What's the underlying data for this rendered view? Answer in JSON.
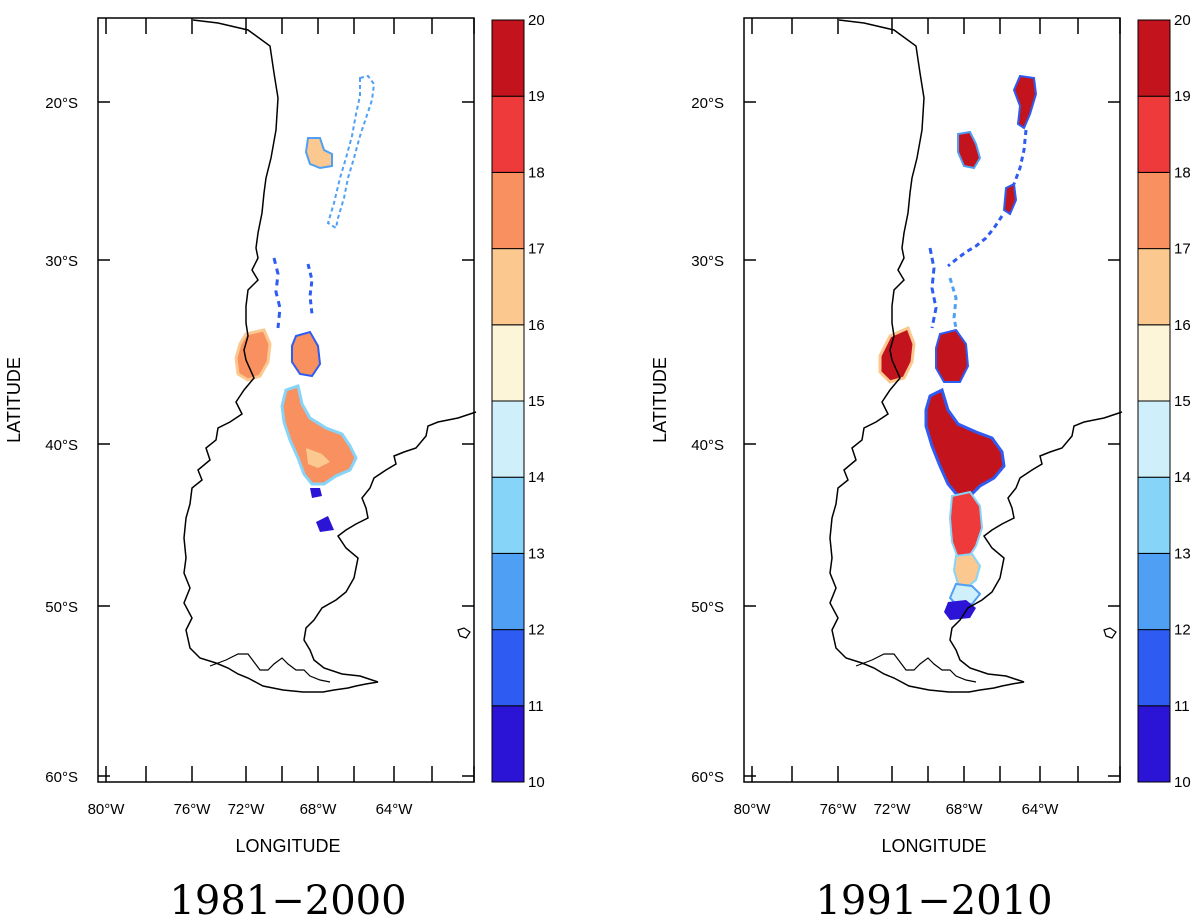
{
  "panels": [
    {
      "id": "p1",
      "period": "1981−2000",
      "xlabel": "LONGITUDE",
      "ylabel": "LATITUDE",
      "lon_ticks": [
        "80°W",
        "76°W",
        "72°W",
        "68°W",
        "64°W"
      ],
      "lat_ticks": [
        "20°S",
        "30°S",
        "40°S",
        "50°S",
        "60°S"
      ]
    },
    {
      "id": "p2",
      "period": "1991−2010",
      "xlabel": "LONGITUDE",
      "ylabel": "LATITUDE",
      "lon_ticks": [
        "80°W",
        "76°W",
        "72°W",
        "68°W",
        "64°W"
      ],
      "lat_ticks": [
        "20°S",
        "30°S",
        "40°S",
        "50°S",
        "60°S"
      ]
    }
  ],
  "colorbar": {
    "labels": [
      "10",
      "11",
      "12",
      "13",
      "14",
      "15",
      "16",
      "17",
      "18",
      "19",
      "20"
    ],
    "colors": [
      "#2b14d6",
      "#2e5cf2",
      "#4fa0f4",
      "#86d4f8",
      "#cfeffa",
      "#fdf5d8",
      "#fbc890",
      "#f8915f",
      "#ee3a3a",
      "#c3141e"
    ]
  }
}
